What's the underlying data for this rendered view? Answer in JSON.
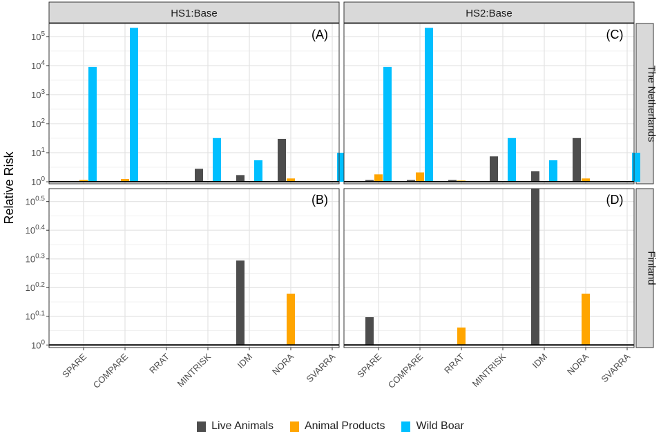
{
  "chart_data": {
    "type": "bar",
    "scale": "log10",
    "ylabel": "Relative Risk",
    "categories": [
      "SPARE",
      "COMPARE",
      "RRAT",
      "MINTRISK",
      "IDM",
      "NORA",
      "SVARRA"
    ],
    "column_strips": [
      "HS1:Base",
      "HS2:Base"
    ],
    "row_strips": [
      "The Netherlands",
      "Finland"
    ],
    "series_names": [
      "Live Animals",
      "Animal Products",
      "Wild Boar"
    ],
    "series_colors": [
      "#4d4d4d",
      "#ffa500",
      "#00bfff"
    ],
    "row_axes": [
      {
        "row": "The Netherlands",
        "ylim_exp": [
          -0.07,
          5.45
        ],
        "tick_exps": [
          0,
          1,
          2,
          3,
          4,
          5
        ],
        "tick_labels": [
          "10",
          "10",
          "10",
          "10",
          "10",
          "10"
        ],
        "tick_sup": [
          "0",
          "1",
          "2",
          "3",
          "4",
          "5"
        ]
      },
      {
        "row": "Finland",
        "ylim_exp": [
          -0.009,
          0.545
        ],
        "tick_exps": [
          0,
          0.1,
          0.2,
          0.3,
          0.4,
          0.5
        ],
        "tick_labels": [
          "10",
          "10",
          "10",
          "10",
          "10",
          "10"
        ],
        "tick_sup": [
          "0",
          "0.1",
          "0.2",
          "0.3",
          "0.4",
          "0.5"
        ]
      }
    ],
    "panels": [
      {
        "label": "(A)",
        "row": 0,
        "col": 0,
        "series": [
          {
            "name": "Live Animals",
            "values": [
              1,
              1,
              1,
              2.8,
              1.7,
              30,
              1
            ]
          },
          {
            "name": "Animal Products",
            "values": [
              1.15,
              1.25,
              1,
              1,
              1,
              1.3,
              1
            ]
          },
          {
            "name": "Wild Boar",
            "values": [
              9000,
              200000,
              1,
              32,
              5.5,
              1,
              10
            ]
          }
        ]
      },
      {
        "label": "(C)",
        "row": 0,
        "col": 1,
        "series": [
          {
            "name": "Live Animals",
            "values": [
              1.15,
              1.15,
              1.15,
              7.5,
              2.3,
              32,
              1
            ]
          },
          {
            "name": "Animal Products",
            "values": [
              1.8,
              2.1,
              1.1,
              1,
              1,
              1.3,
              1
            ]
          },
          {
            "name": "Wild Boar",
            "values": [
              9000,
              200000,
              1,
              32,
              5.5,
              1,
              10
            ]
          }
        ]
      },
      {
        "label": "(B)",
        "row": 1,
        "col": 0,
        "series": [
          {
            "name": "Live Animals",
            "values": [
              1,
              1,
              1,
              1,
              1.97,
              1,
              1
            ]
          },
          {
            "name": "Animal Products",
            "values": [
              1,
              1,
              1,
              1,
              1,
              1.51,
              1
            ]
          },
          {
            "name": "Wild Boar",
            "values": [
              1,
              1,
              1,
              1,
              1,
              1,
              1
            ]
          }
        ]
      },
      {
        "label": "(D)",
        "row": 1,
        "col": 1,
        "series": [
          {
            "name": "Live Animals",
            "values": [
              1.25,
              1,
              1,
              1,
              3.5,
              1,
              1
            ]
          },
          {
            "name": "Animal Products",
            "values": [
              1,
              1,
              1.15,
              1,
              1,
              1.51,
              1
            ]
          },
          {
            "name": "Wild Boar",
            "values": [
              1,
              1,
              1,
              1,
              1,
              1,
              1
            ]
          }
        ]
      }
    ]
  }
}
